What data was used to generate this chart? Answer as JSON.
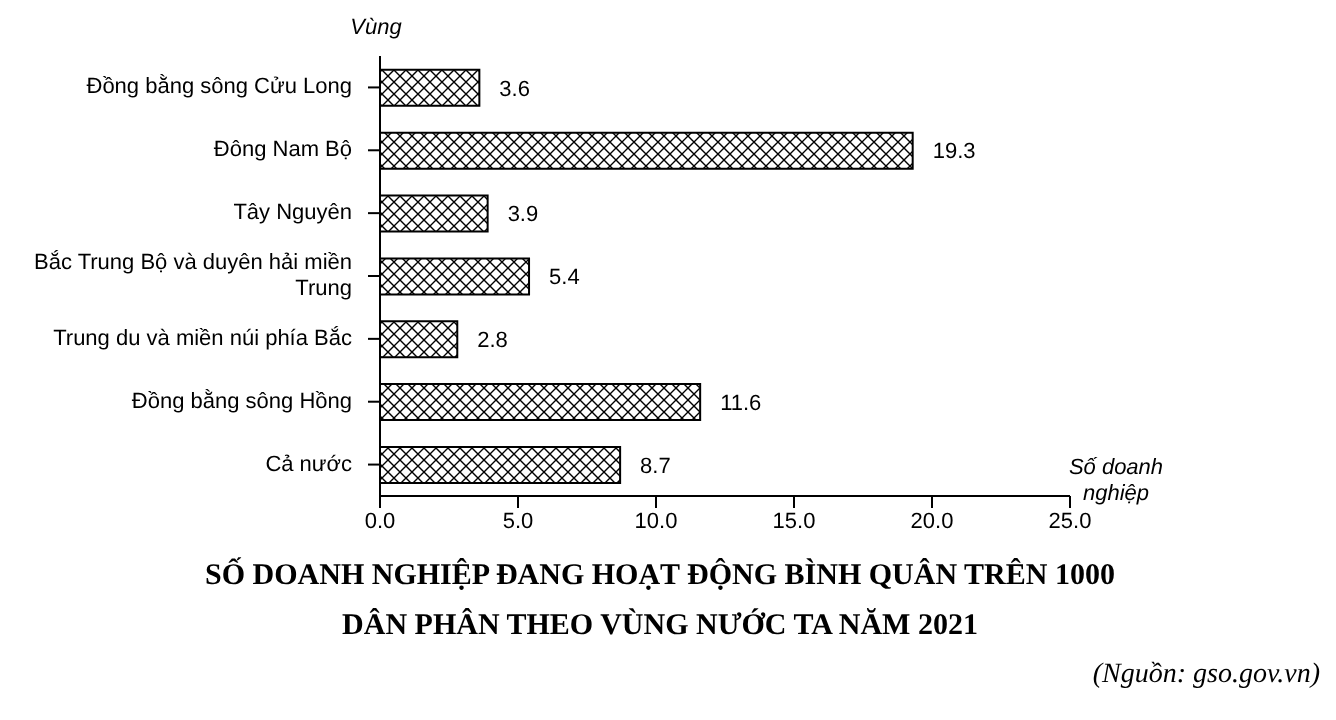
{
  "chart_data": {
    "type": "bar",
    "orientation": "horizontal",
    "title": "SỐ DOANH NGHIỆP ĐANG HOẠT ĐỘNG BÌNH QUÂN TRÊN 1000 DÂN PHÂN THEO VÙNG NƯỚC TA NĂM 2021",
    "ylabel": "Vùng",
    "xlabel": "Số doanh nghiệp",
    "annotations": [
      "(Nguồn: gso.gov.vn)"
    ],
    "categories": [
      "Đồng bằng sông Cửu Long",
      "Đông Nam Bộ",
      "Tây Nguyên",
      "Bắc Trung Bộ và duyên hải miền Trung",
      "Trung du và miền núi phía Bắc",
      "Đồng bằng sông Hồng",
      "Cả nước"
    ],
    "values": [
      3.6,
      19.3,
      3.9,
      5.4,
      2.8,
      11.6,
      8.7
    ],
    "color": "#000000",
    "data_labels": true,
    "xlim": [
      0,
      25
    ],
    "xticks": [
      {
        "value": 0,
        "label": "0.0"
      },
      {
        "value": 5,
        "label": "5.0"
      },
      {
        "value": 10,
        "label": "10.0"
      },
      {
        "value": 15,
        "label": "15.0"
      },
      {
        "value": 20,
        "label": "20.0"
      },
      {
        "value": 25,
        "label": "25.0"
      }
    ]
  }
}
